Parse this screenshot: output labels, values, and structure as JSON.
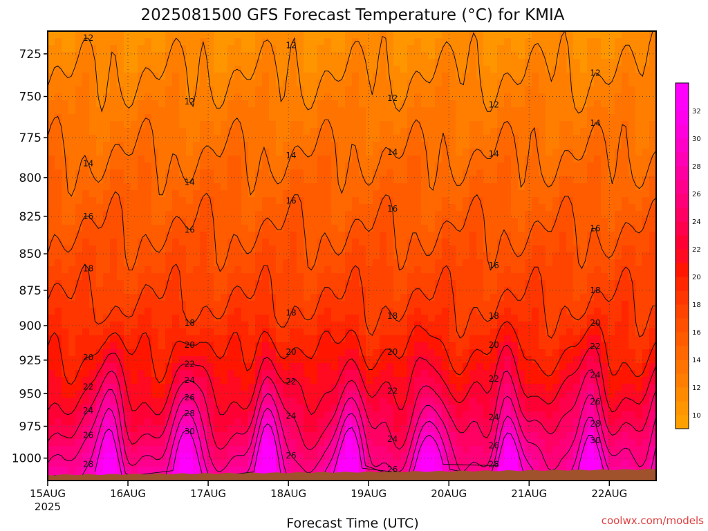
{
  "chart_data": {
    "type": "heatmap",
    "title": "2025081500 GFS Forecast Temperature (°C) for KMIA",
    "xlabel": "Forecast Time (UTC)",
    "ylabel": "",
    "x_ticks": [
      "15AUG",
      "16AUG",
      "17AUG",
      "18AUG",
      "19AUG",
      "20AUG",
      "21AUG",
      "22AUG"
    ],
    "x_year_label": "2025",
    "x_range_hours": [
      0,
      182
    ],
    "y_ticks": [
      725,
      750,
      775,
      800,
      825,
      850,
      875,
      900,
      925,
      950,
      975,
      1000
    ],
    "y_range_hpa": [
      712,
      1018
    ],
    "y_scale": "log-pressure",
    "grid": true,
    "colorbar": {
      "ticks": [
        10,
        12,
        14,
        16,
        18,
        20,
        22,
        24,
        26,
        28,
        30,
        32
      ],
      "levels": [
        9,
        10,
        11,
        12,
        13,
        14,
        15,
        16,
        17,
        18,
        19,
        20,
        21,
        22,
        23,
        24,
        25,
        26,
        27,
        28,
        29,
        30,
        31,
        32,
        33,
        34
      ],
      "colors": [
        "#ffa000",
        "#ff9600",
        "#ff8a00",
        "#ff7e00",
        "#ff7300",
        "#ff6800",
        "#ff5c00",
        "#ff5000",
        "#ff4400",
        "#ff3600",
        "#ff2600",
        "#ff1500",
        "#ff0a20",
        "#ff0035",
        "#ff004c",
        "#ff0063",
        "#ff0078",
        "#ff008c",
        "#ff00a0",
        "#ff00b4",
        "#ff00c8",
        "#ff00dc",
        "#ff00ec",
        "#ff00f8",
        "#ff00ff"
      ],
      "placement": "right"
    },
    "ground_color": "#a0522d",
    "contour_labels": [
      12,
      14,
      16,
      18,
      20,
      22,
      24,
      26,
      28,
      30
    ]
  },
  "credit": "coolwx.com/models"
}
